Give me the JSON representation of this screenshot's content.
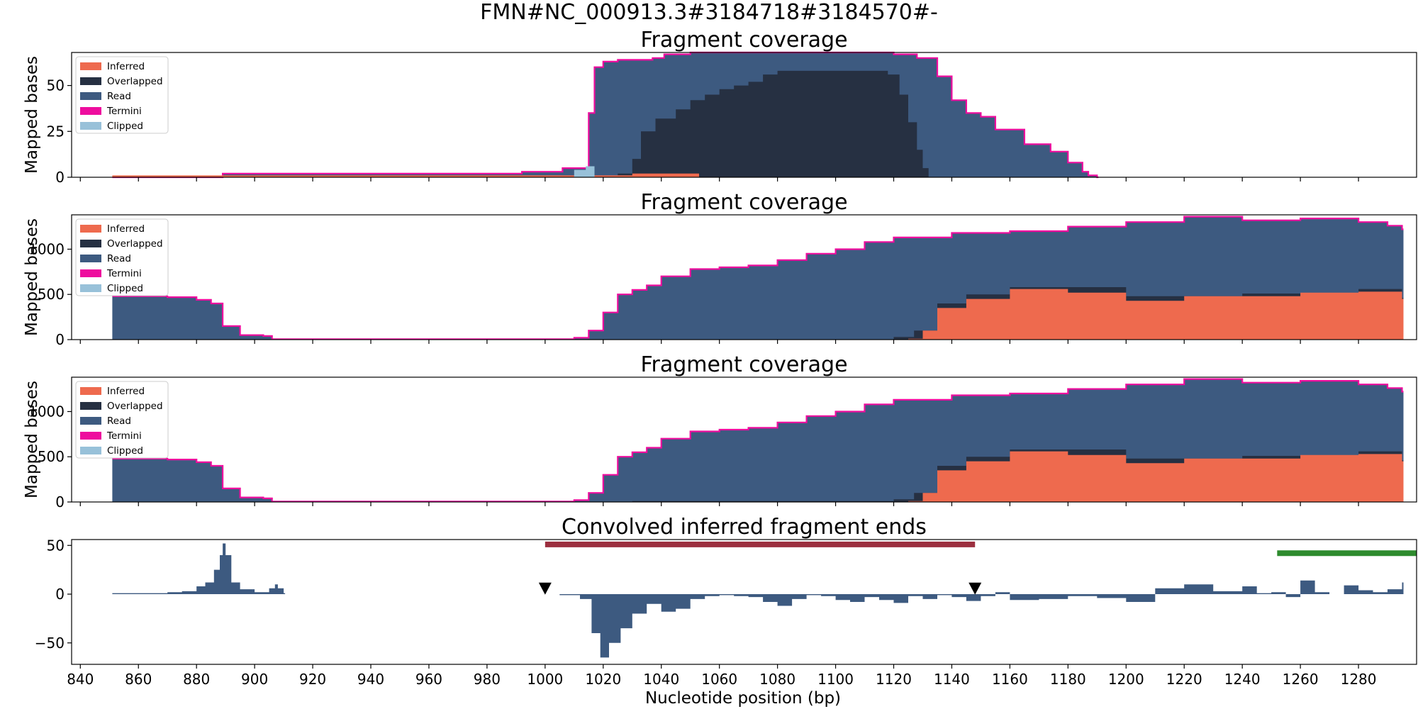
{
  "figure": {
    "suptitle": "FMN#NC_000913.3#3184718#3184570#-",
    "xlabel": "Nucleotide position (bp)",
    "x_ticks": [
      840,
      860,
      880,
      900,
      920,
      940,
      960,
      980,
      1000,
      1020,
      1040,
      1060,
      1080,
      1100,
      1120,
      1140,
      1160,
      1180,
      1200,
      1220,
      1240,
      1260,
      1280
    ],
    "xlim": [
      837,
      1300
    ]
  },
  "legend": [
    {
      "label": "Inferred",
      "color": "#EE6A4E"
    },
    {
      "label": "Overlapped",
      "color": "#263042"
    },
    {
      "label": "Read",
      "color": "#3D5A80"
    },
    {
      "label": "Termini",
      "color": "#EE0D9E"
    },
    {
      "label": "Clipped",
      "color": "#98C1D9"
    }
  ],
  "chart_data": [
    {
      "type": "area",
      "title": "Fragment coverage",
      "ylabel": "Mapped bases",
      "ylim": [
        0,
        68
      ],
      "y_ticks": [
        0,
        25,
        50
      ],
      "grid": false,
      "legend_position": "top-left",
      "series": [
        {
          "name": "Read",
          "x": [
            851,
            889,
            909,
            984,
            992,
            1006,
            1013,
            1015,
            1017,
            1020,
            1025,
            1030,
            1037,
            1041,
            1050,
            1060,
            1080,
            1100,
            1112,
            1115,
            1120,
            1128,
            1135,
            1140,
            1145,
            1150,
            1155,
            1165,
            1174,
            1180,
            1185,
            1187,
            1190
          ],
          "y": [
            0,
            2,
            2,
            2,
            3,
            5,
            5,
            35,
            60,
            63,
            64,
            64,
            65,
            67,
            68,
            68,
            68,
            68,
            68,
            68,
            67,
            65,
            55,
            42,
            35,
            33,
            26,
            18,
            14,
            8,
            3,
            1,
            0
          ]
        },
        {
          "name": "Overlapped",
          "x": [
            1018,
            1025,
            1030,
            1033,
            1038,
            1045,
            1050,
            1055,
            1060,
            1065,
            1070,
            1075,
            1080,
            1085,
            1090,
            1100,
            1110,
            1118,
            1122,
            1125,
            1128,
            1130,
            1132
          ],
          "y": [
            0,
            2,
            10,
            25,
            32,
            37,
            42,
            45,
            48,
            50,
            52,
            56,
            58,
            58,
            58,
            58,
            58,
            56,
            45,
            30,
            15,
            5,
            0
          ]
        },
        {
          "name": "Inferred",
          "x": [
            851,
            889,
            909,
            984,
            1000,
            1020,
            1030,
            1040,
            1052,
            1053
          ],
          "y": [
            1,
            1,
            1,
            1,
            1,
            1,
            2,
            2,
            2,
            0
          ]
        },
        {
          "name": "Clipped",
          "x": [
            1010,
            1014,
            1017
          ],
          "y": [
            4,
            6,
            0
          ]
        }
      ]
    },
    {
      "type": "area",
      "title": "Fragment coverage",
      "ylabel": "Mapped bases",
      "ylim": [
        0,
        1380
      ],
      "y_ticks": [
        0,
        500,
        1000
      ],
      "grid": false,
      "legend_position": "top-left",
      "series": [
        {
          "name": "Read",
          "x": [
            851,
            870,
            880,
            885,
            889,
            895,
            903,
            906,
            909,
            960,
            1000,
            1010,
            1015,
            1020,
            1025,
            1030,
            1035,
            1040,
            1050,
            1060,
            1070,
            1080,
            1090,
            1100,
            1110,
            1120,
            1140,
            1160,
            1180,
            1200,
            1220,
            1240,
            1260,
            1280,
            1290,
            1295
          ],
          "y": [
            480,
            470,
            440,
            400,
            150,
            50,
            40,
            5,
            5,
            5,
            5,
            20,
            100,
            300,
            500,
            550,
            600,
            700,
            780,
            800,
            820,
            880,
            950,
            1000,
            1080,
            1130,
            1180,
            1200,
            1250,
            1300,
            1360,
            1320,
            1340,
            1300,
            1260,
            1220
          ]
        },
        {
          "name": "Overlapped",
          "x": [
            851,
            1000,
            1120,
            1127,
            1135,
            1145,
            1160,
            1200,
            1240,
            1280,
            1295
          ],
          "y": [
            0,
            0,
            30,
            100,
            400,
            500,
            580,
            480,
            510,
            560,
            460
          ]
        },
        {
          "name": "Inferred",
          "x": [
            851,
            1000,
            1125,
            1130,
            1135,
            1145,
            1160,
            1180,
            1200,
            1220,
            1240,
            1260,
            1280,
            1295
          ],
          "y": [
            0,
            0,
            10,
            100,
            350,
            450,
            560,
            520,
            430,
            480,
            480,
            520,
            530,
            450
          ]
        }
      ]
    },
    {
      "type": "area",
      "title": "Fragment coverage",
      "ylabel": "Mapped bases",
      "ylim": [
        0,
        1380
      ],
      "y_ticks": [
        0,
        500,
        1000
      ],
      "grid": false,
      "legend_position": "top-left",
      "series": [
        {
          "name": "Read",
          "x": [
            851,
            870,
            880,
            885,
            889,
            895,
            903,
            906,
            909,
            960,
            1000,
            1010,
            1015,
            1020,
            1025,
            1030,
            1035,
            1040,
            1050,
            1060,
            1070,
            1080,
            1090,
            1100,
            1110,
            1120,
            1140,
            1160,
            1180,
            1200,
            1220,
            1240,
            1260,
            1280,
            1290,
            1295
          ],
          "y": [
            480,
            470,
            440,
            400,
            150,
            50,
            40,
            5,
            5,
            5,
            5,
            20,
            100,
            300,
            500,
            550,
            600,
            700,
            780,
            800,
            820,
            880,
            950,
            1000,
            1080,
            1130,
            1180,
            1200,
            1250,
            1300,
            1360,
            1320,
            1340,
            1300,
            1260,
            1220
          ]
        },
        {
          "name": "Overlapped",
          "x": [
            851,
            1000,
            1030,
            1120,
            1127,
            1135,
            1145,
            1160,
            1200,
            1240,
            1280,
            1295
          ],
          "y": [
            0,
            0,
            10,
            30,
            100,
            400,
            500,
            580,
            480,
            510,
            560,
            460
          ]
        },
        {
          "name": "Inferred",
          "x": [
            851,
            1000,
            1125,
            1130,
            1135,
            1145,
            1160,
            1180,
            1200,
            1220,
            1240,
            1260,
            1280,
            1295
          ],
          "y": [
            0,
            0,
            10,
            100,
            350,
            450,
            560,
            520,
            430,
            480,
            480,
            520,
            530,
            450
          ]
        }
      ]
    },
    {
      "type": "bar",
      "title": "Convolved inferred fragment ends",
      "ylabel": "",
      "ylim": [
        -72,
        56
      ],
      "y_ticks": [
        -50,
        0,
        50
      ],
      "grid": false,
      "color": "#3D5A80",
      "series": [
        {
          "x": [
            851,
            860,
            870,
            875,
            880,
            883,
            886,
            888,
            889,
            890,
            892,
            895,
            900,
            905,
            907,
            908,
            910
          ],
          "y": [
            1,
            1,
            2,
            3,
            8,
            12,
            25,
            40,
            52,
            40,
            12,
            5,
            2,
            6,
            10,
            6,
            1
          ]
        },
        {
          "x": [
            1005,
            1012,
            1016,
            1019,
            1022,
            1026,
            1030,
            1035,
            1040,
            1045,
            1050,
            1055,
            1060,
            1065,
            1070,
            1075,
            1080,
            1085,
            1090,
            1095,
            1100,
            1105,
            1110,
            1115,
            1120,
            1125,
            1130,
            1135,
            1140,
            1145,
            1150,
            1155,
            1160,
            1170,
            1180,
            1190,
            1200,
            1210,
            1220,
            1230,
            1240,
            1245,
            1250,
            1255,
            1260,
            1265,
            1270,
            1275,
            1280,
            1285,
            1290,
            1295
          ],
          "y": [
            -1,
            -5,
            -40,
            -65,
            -50,
            -35,
            -20,
            -10,
            -18,
            -15,
            -5,
            -2,
            -1,
            -2,
            -3,
            -8,
            -12,
            -5,
            -1,
            -2,
            -6,
            -8,
            -3,
            -6,
            -9,
            -2,
            -5,
            -1,
            -3,
            -7,
            -2,
            2,
            -6,
            -5,
            -2,
            -4,
            -8,
            6,
            10,
            3,
            8,
            1,
            2,
            -3,
            14,
            2,
            0,
            9,
            4,
            2,
            5,
            12
          ]
        }
      ],
      "segments": [
        {
          "x": [
            1000,
            1148
          ],
          "y": 51,
          "color": "#9B2E3E"
        },
        {
          "x": [
            1252,
            1300
          ],
          "y": 42,
          "color": "#2E8B2E"
        }
      ],
      "markers": [
        {
          "x": 1000,
          "y": 6,
          "shape": "triangle-down"
        },
        {
          "x": 1148,
          "y": 6,
          "shape": "triangle-down"
        }
      ]
    }
  ]
}
